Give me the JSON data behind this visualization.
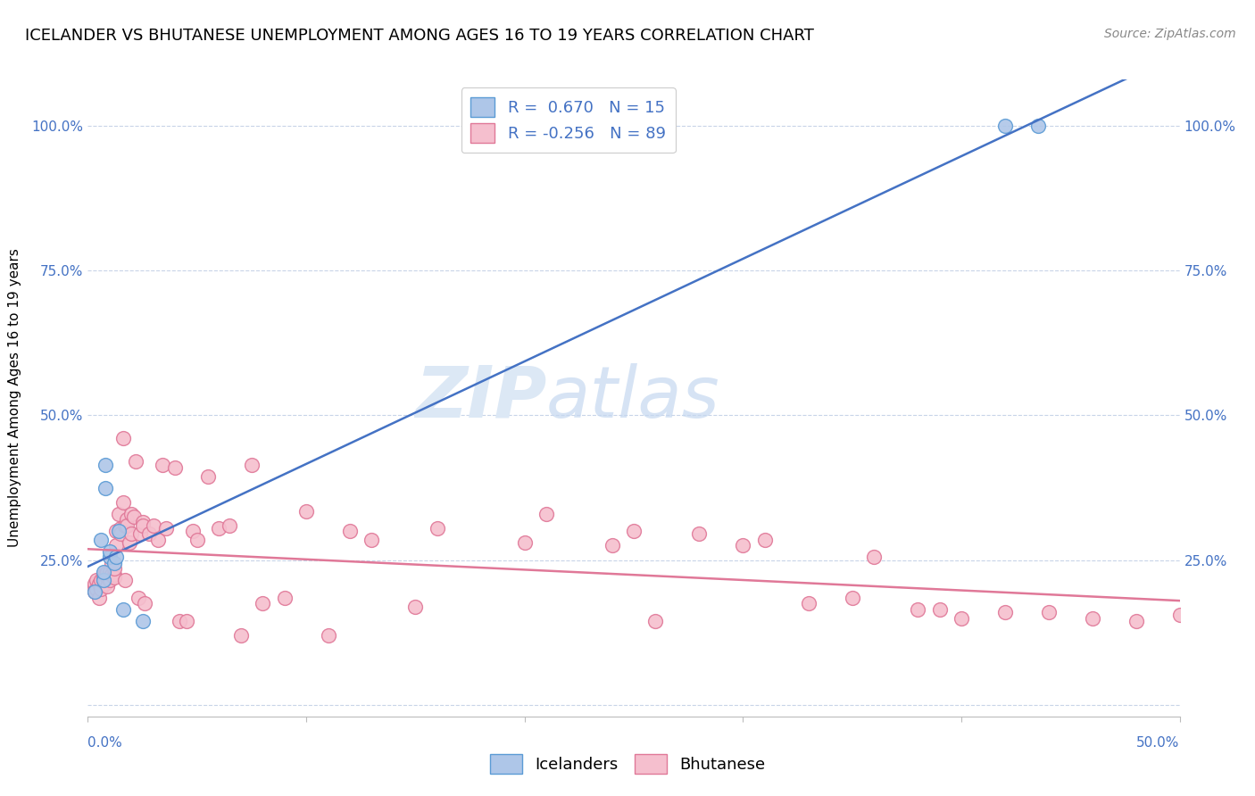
{
  "title": "ICELANDER VS BHUTANESE UNEMPLOYMENT AMONG AGES 16 TO 19 YEARS CORRELATION CHART",
  "source": "Source: ZipAtlas.com",
  "ylabel": "Unemployment Among Ages 16 to 19 years",
  "xlim": [
    0.0,
    0.5
  ],
  "ylim": [
    -0.02,
    1.08
  ],
  "watermark_zip": "ZIP",
  "watermark_atlas": "atlas",
  "icelander_R": 0.67,
  "icelander_N": 15,
  "bhutanese_R": -0.256,
  "bhutanese_N": 89,
  "icelander_color": "#aec6e8",
  "icelander_edge": "#5b9bd5",
  "bhutanese_color": "#f5bfce",
  "bhutanese_edge": "#e07898",
  "icelander_line_color": "#4472c4",
  "bhutanese_line_color": "#e07898",
  "icelander_points_x": [
    0.003,
    0.006,
    0.007,
    0.007,
    0.008,
    0.008,
    0.01,
    0.01,
    0.012,
    0.013,
    0.014,
    0.016,
    0.025,
    0.42,
    0.435
  ],
  "icelander_points_y": [
    0.195,
    0.285,
    0.215,
    0.23,
    0.375,
    0.415,
    0.255,
    0.265,
    0.245,
    0.255,
    0.3,
    0.165,
    0.145,
    1.0,
    1.0
  ],
  "bhutanese_points_x": [
    0.003,
    0.003,
    0.003,
    0.004,
    0.004,
    0.005,
    0.005,
    0.006,
    0.006,
    0.007,
    0.007,
    0.007,
    0.008,
    0.008,
    0.008,
    0.009,
    0.009,
    0.009,
    0.01,
    0.01,
    0.01,
    0.011,
    0.011,
    0.012,
    0.012,
    0.012,
    0.013,
    0.013,
    0.014,
    0.015,
    0.015,
    0.016,
    0.016,
    0.017,
    0.017,
    0.018,
    0.018,
    0.019,
    0.02,
    0.02,
    0.021,
    0.022,
    0.023,
    0.024,
    0.025,
    0.025,
    0.026,
    0.028,
    0.03,
    0.032,
    0.034,
    0.036,
    0.04,
    0.042,
    0.045,
    0.048,
    0.05,
    0.055,
    0.06,
    0.065,
    0.07,
    0.075,
    0.08,
    0.09,
    0.1,
    0.11,
    0.12,
    0.13,
    0.15,
    0.16,
    0.2,
    0.21,
    0.24,
    0.25,
    0.26,
    0.28,
    0.3,
    0.31,
    0.33,
    0.35,
    0.36,
    0.38,
    0.39,
    0.4,
    0.42,
    0.44,
    0.46,
    0.48,
    0.5
  ],
  "bhutanese_points_y": [
    0.205,
    0.21,
    0.195,
    0.215,
    0.2,
    0.21,
    0.185,
    0.2,
    0.215,
    0.22,
    0.215,
    0.225,
    0.21,
    0.215,
    0.225,
    0.22,
    0.23,
    0.205,
    0.22,
    0.215,
    0.23,
    0.225,
    0.245,
    0.225,
    0.22,
    0.235,
    0.3,
    0.275,
    0.33,
    0.305,
    0.295,
    0.35,
    0.46,
    0.31,
    0.215,
    0.32,
    0.31,
    0.28,
    0.33,
    0.295,
    0.325,
    0.42,
    0.185,
    0.295,
    0.315,
    0.31,
    0.175,
    0.295,
    0.31,
    0.285,
    0.415,
    0.305,
    0.41,
    0.145,
    0.145,
    0.3,
    0.285,
    0.395,
    0.305,
    0.31,
    0.12,
    0.415,
    0.175,
    0.185,
    0.335,
    0.12,
    0.3,
    0.285,
    0.17,
    0.305,
    0.28,
    0.33,
    0.275,
    0.3,
    0.145,
    0.295,
    0.275,
    0.285,
    0.175,
    0.185,
    0.255,
    0.165,
    0.165,
    0.15,
    0.16,
    0.16,
    0.15,
    0.145,
    0.155
  ],
  "background_color": "#ffffff",
  "grid_color": "#c8d4e8",
  "title_fontsize": 13,
  "source_fontsize": 10,
  "axis_label_fontsize": 11,
  "tick_fontsize": 11,
  "legend_fontsize": 13
}
